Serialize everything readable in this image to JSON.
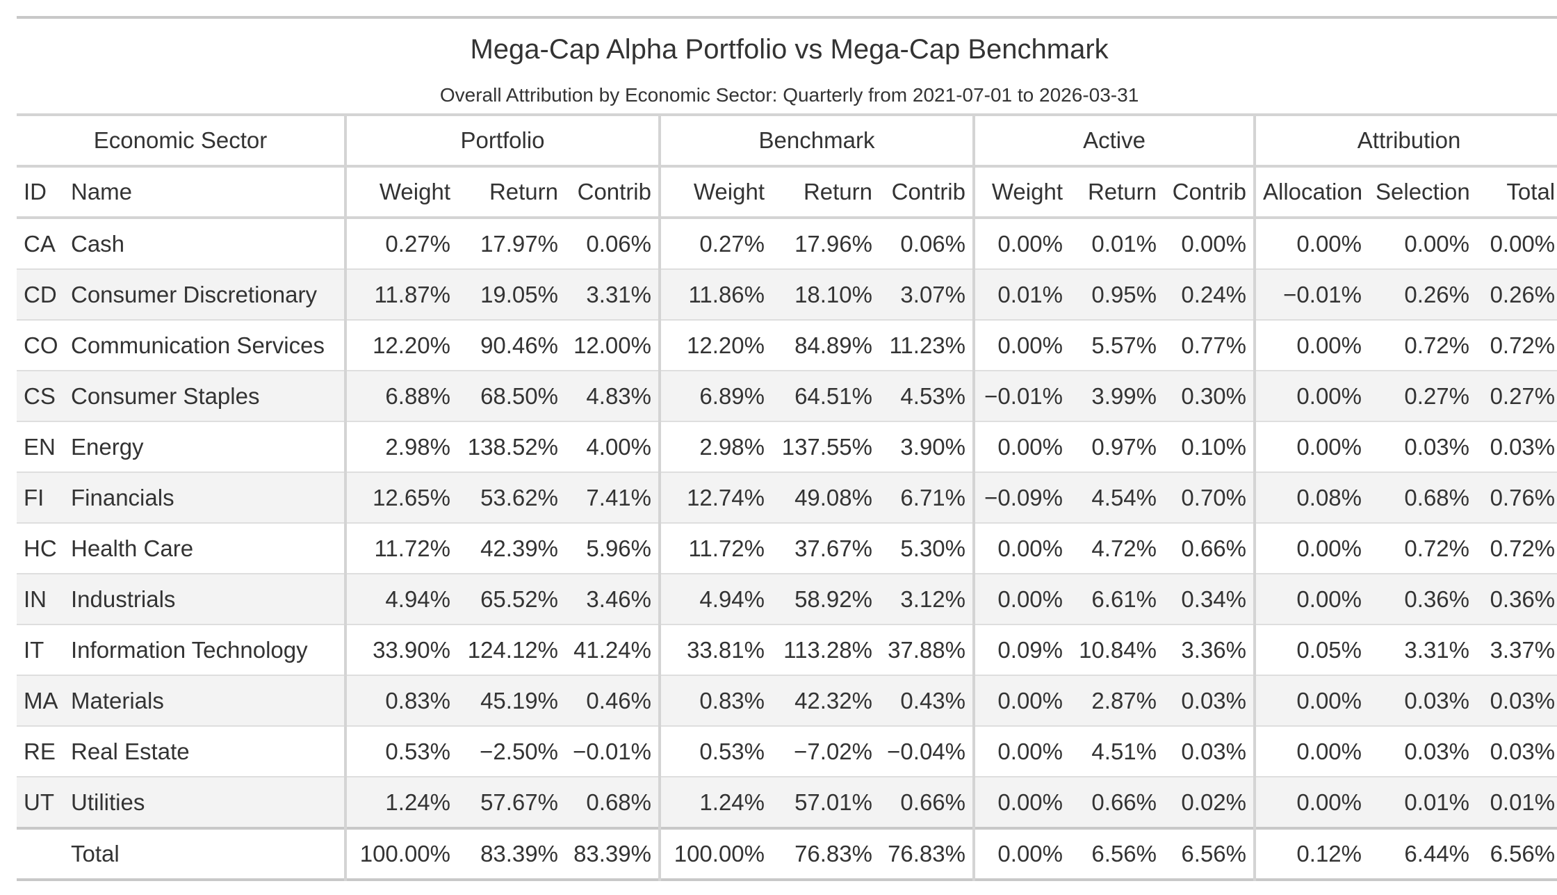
{
  "title": "Mega-Cap Alpha Portfolio vs Mega-Cap Benchmark",
  "subtitle": "Overall Attribution by Economic Sector: Quarterly from 2021-07-01 to 2026-03-31",
  "spanners": {
    "sector": "Economic Sector",
    "portfolio": "Portfolio",
    "benchmark": "Benchmark",
    "active": "Active",
    "attribution": "Attribution"
  },
  "columns": [
    "ID",
    "Name",
    "Weight",
    "Return",
    "Contrib",
    "Weight",
    "Return",
    "Contrib",
    "Weight",
    "Return",
    "Contrib",
    "Allocation",
    "Selection",
    "Total"
  ],
  "rows": [
    [
      "CA",
      "Cash",
      "0.27%",
      "17.97%",
      "0.06%",
      "0.27%",
      "17.96%",
      "0.06%",
      "0.00%",
      "0.01%",
      "0.00%",
      "0.00%",
      "0.00%",
      "0.00%"
    ],
    [
      "CD",
      "Consumer Discretionary",
      "11.87%",
      "19.05%",
      "3.31%",
      "11.86%",
      "18.10%",
      "3.07%",
      "0.01%",
      "0.95%",
      "0.24%",
      "−0.01%",
      "0.26%",
      "0.26%"
    ],
    [
      "CO",
      "Communication Services",
      "12.20%",
      "90.46%",
      "12.00%",
      "12.20%",
      "84.89%",
      "11.23%",
      "0.00%",
      "5.57%",
      "0.77%",
      "0.00%",
      "0.72%",
      "0.72%"
    ],
    [
      "CS",
      "Consumer Staples",
      "6.88%",
      "68.50%",
      "4.83%",
      "6.89%",
      "64.51%",
      "4.53%",
      "−0.01%",
      "3.99%",
      "0.30%",
      "0.00%",
      "0.27%",
      "0.27%"
    ],
    [
      "EN",
      "Energy",
      "2.98%",
      "138.52%",
      "4.00%",
      "2.98%",
      "137.55%",
      "3.90%",
      "0.00%",
      "0.97%",
      "0.10%",
      "0.00%",
      "0.03%",
      "0.03%"
    ],
    [
      "FI",
      "Financials",
      "12.65%",
      "53.62%",
      "7.41%",
      "12.74%",
      "49.08%",
      "6.71%",
      "−0.09%",
      "4.54%",
      "0.70%",
      "0.08%",
      "0.68%",
      "0.76%"
    ],
    [
      "HC",
      "Health Care",
      "11.72%",
      "42.39%",
      "5.96%",
      "11.72%",
      "37.67%",
      "5.30%",
      "0.00%",
      "4.72%",
      "0.66%",
      "0.00%",
      "0.72%",
      "0.72%"
    ],
    [
      "IN",
      "Industrials",
      "4.94%",
      "65.52%",
      "3.46%",
      "4.94%",
      "58.92%",
      "3.12%",
      "0.00%",
      "6.61%",
      "0.34%",
      "0.00%",
      "0.36%",
      "0.36%"
    ],
    [
      "IT",
      "Information Technology",
      "33.90%",
      "124.12%",
      "41.24%",
      "33.81%",
      "113.28%",
      "37.88%",
      "0.09%",
      "10.84%",
      "3.36%",
      "0.05%",
      "3.31%",
      "3.37%"
    ],
    [
      "MA",
      "Materials",
      "0.83%",
      "45.19%",
      "0.46%",
      "0.83%",
      "42.32%",
      "0.43%",
      "0.00%",
      "2.87%",
      "0.03%",
      "0.00%",
      "0.03%",
      "0.03%"
    ],
    [
      "RE",
      "Real Estate",
      "0.53%",
      "−2.50%",
      "−0.01%",
      "0.53%",
      "−7.02%",
      "−0.04%",
      "0.00%",
      "4.51%",
      "0.03%",
      "0.00%",
      "0.03%",
      "0.03%"
    ],
    [
      "UT",
      "Utilities",
      "1.24%",
      "57.67%",
      "0.68%",
      "1.24%",
      "57.01%",
      "0.66%",
      "0.00%",
      "0.66%",
      "0.02%",
      "0.00%",
      "0.01%",
      "0.01%"
    ]
  ],
  "total": [
    "",
    "Total",
    "100.00%",
    "83.39%",
    "83.39%",
    "100.00%",
    "76.83%",
    "76.83%",
    "0.00%",
    "6.56%",
    "6.56%",
    "0.12%",
    "6.44%",
    "6.56%"
  ],
  "colors": {
    "rule": "#c8c8c8",
    "stripe": "#f3f3f3",
    "text": "#333333"
  }
}
